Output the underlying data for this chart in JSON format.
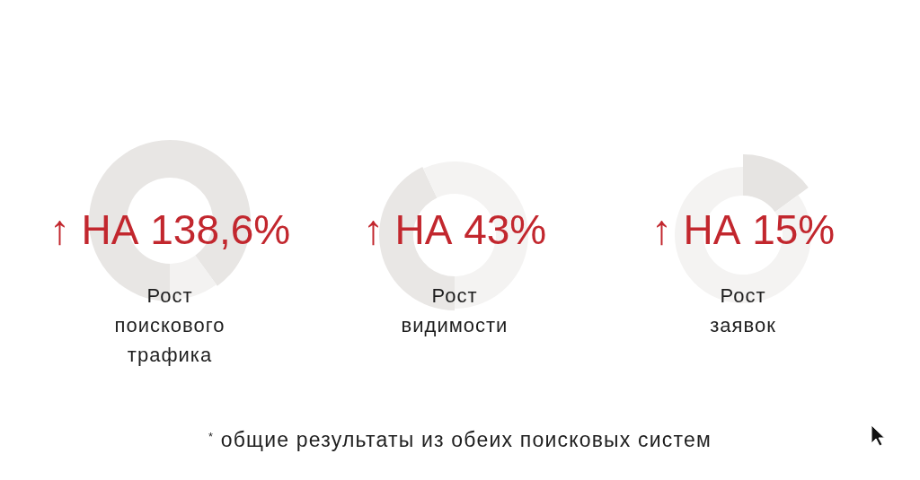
{
  "chart_data": [
    {
      "type": "donut",
      "title": "↑ НА 138,6%",
      "subtitle": "Рост поискового трафика",
      "categories": [
        null,
        null,
        null
      ],
      "values": [
        40,
        10,
        50
      ],
      "colors": [
        "#e8e6e4",
        "#f3f2f1",
        "#e8e6e4"
      ]
    },
    {
      "type": "donut",
      "title": "↑ НА 43%",
      "subtitle": "Рост видимости",
      "categories": [
        null,
        null,
        null
      ],
      "values": [
        50,
        43,
        7
      ],
      "colors": [
        "#f4f3f2",
        "#e9e7e5",
        "#f4f3f2"
      ]
    },
    {
      "type": "donut",
      "title": "↑ НА 15%",
      "subtitle": "Рост заявок",
      "categories": [
        null,
        null
      ],
      "values": [
        15,
        85
      ],
      "colors": [
        "#e6e4e2",
        "#f4f3f2"
      ]
    },
    {
      "type": "other",
      "annotations": [
        "$^{*}$ общие результаты из обеих поисковых систем"
      ]
    }
  ]
}
